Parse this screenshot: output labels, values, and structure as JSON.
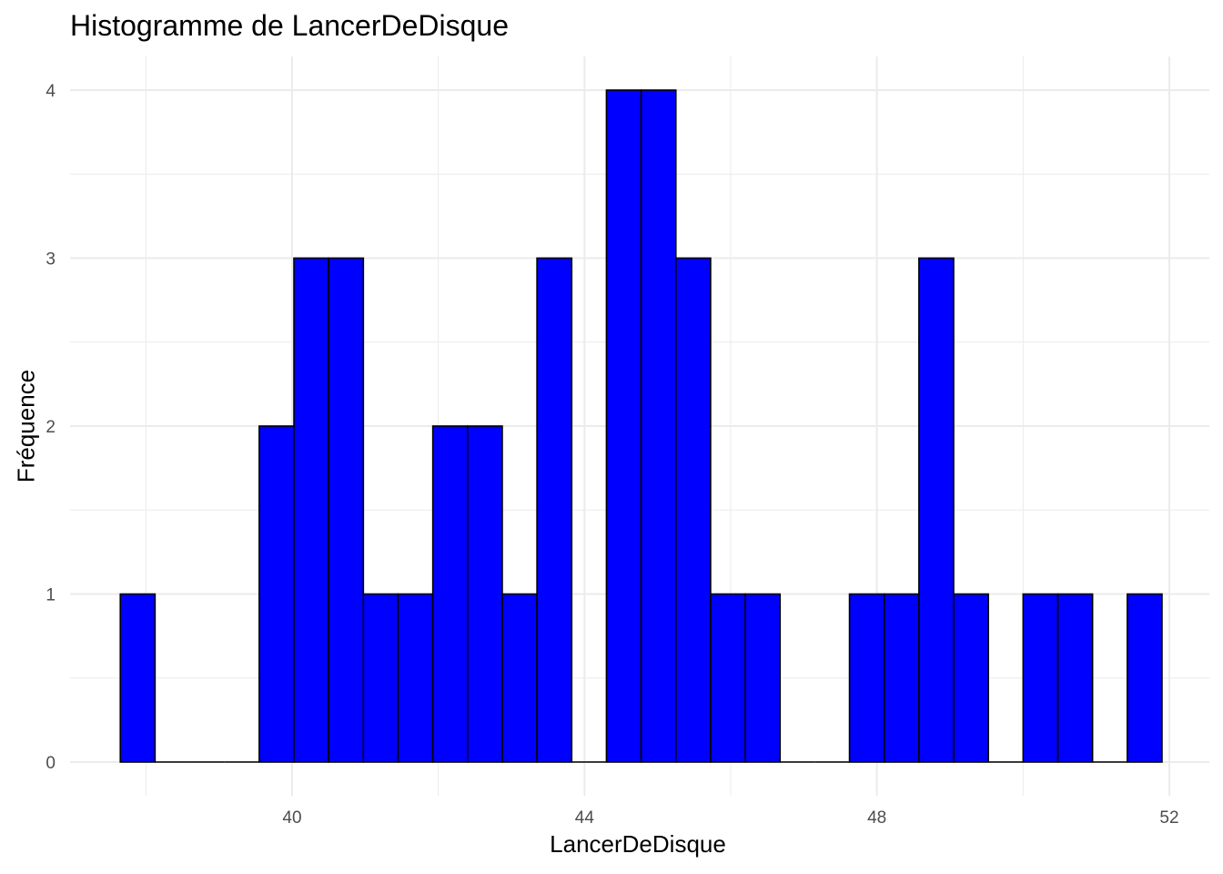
{
  "chart_data": {
    "type": "bar",
    "title": "Histogramme de LancerDeDisque",
    "xlabel": "LancerDeDisque",
    "ylabel": "Fréquence",
    "bin_width": 0.475,
    "bins": [
      {
        "x0": 37.65,
        "x1": 38.125,
        "count": 1
      },
      {
        "x0": 38.125,
        "x1": 38.6,
        "count": 0
      },
      {
        "x0": 38.6,
        "x1": 39.075,
        "count": 0
      },
      {
        "x0": 39.075,
        "x1": 39.55,
        "count": 0
      },
      {
        "x0": 39.55,
        "x1": 40.025,
        "count": 2
      },
      {
        "x0": 40.025,
        "x1": 40.5,
        "count": 3
      },
      {
        "x0": 40.5,
        "x1": 40.975,
        "count": 3
      },
      {
        "x0": 40.975,
        "x1": 41.45,
        "count": 1
      },
      {
        "x0": 41.45,
        "x1": 41.925,
        "count": 1
      },
      {
        "x0": 41.925,
        "x1": 42.4,
        "count": 2
      },
      {
        "x0": 42.4,
        "x1": 42.875,
        "count": 2
      },
      {
        "x0": 42.875,
        "x1": 43.35,
        "count": 1
      },
      {
        "x0": 43.35,
        "x1": 43.825,
        "count": 3
      },
      {
        "x0": 43.825,
        "x1": 44.3,
        "count": 0
      },
      {
        "x0": 44.3,
        "x1": 44.775,
        "count": 4
      },
      {
        "x0": 44.775,
        "x1": 45.25,
        "count": 4
      },
      {
        "x0": 45.25,
        "x1": 45.725,
        "count": 3
      },
      {
        "x0": 45.725,
        "x1": 46.2,
        "count": 1
      },
      {
        "x0": 46.2,
        "x1": 46.675,
        "count": 1
      },
      {
        "x0": 46.675,
        "x1": 47.15,
        "count": 0
      },
      {
        "x0": 47.15,
        "x1": 47.625,
        "count": 0
      },
      {
        "x0": 47.625,
        "x1": 48.1,
        "count": 1
      },
      {
        "x0": 48.1,
        "x1": 48.575,
        "count": 1
      },
      {
        "x0": 48.575,
        "x1": 49.05,
        "count": 3
      },
      {
        "x0": 49.05,
        "x1": 49.525,
        "count": 1
      },
      {
        "x0": 49.525,
        "x1": 50.0,
        "count": 0
      },
      {
        "x0": 50.0,
        "x1": 50.475,
        "count": 1
      },
      {
        "x0": 50.475,
        "x1": 50.95,
        "count": 1
      },
      {
        "x0": 50.95,
        "x1": 51.425,
        "count": 0
      },
      {
        "x0": 51.425,
        "x1": 51.9,
        "count": 1
      }
    ],
    "x_ticks": [
      40,
      44,
      48,
      52
    ],
    "y_ticks": [
      0,
      1,
      2,
      3,
      4
    ],
    "xlim": [
      37.0,
      52.5
    ],
    "ylim": [
      -0.2,
      4.2
    ],
    "grid": true,
    "legend": "none",
    "bar_fill": "#0000ff",
    "bar_outline": "#000000",
    "grid_color": "#ebebeb",
    "tick_label_color": "#4d4d4d"
  }
}
